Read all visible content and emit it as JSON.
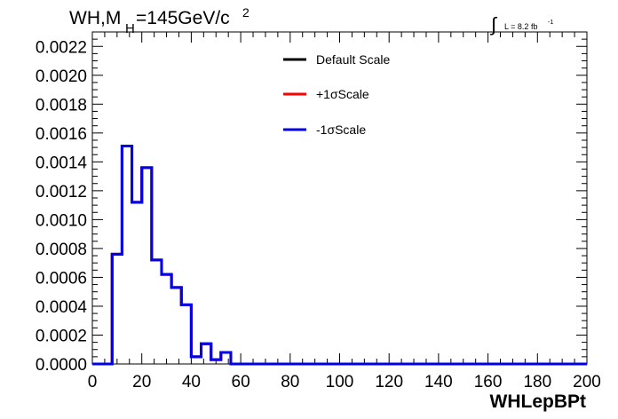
{
  "chart_data": {
    "type": "line",
    "title": "WH,M",
    "title_sub": "H",
    "title_rest": "=145GeV/c",
    "title_sup": "2",
    "lumi_integral": "∫",
    "lumi_text": "L = 8.2 fb",
    "lumi_sup": "-1",
    "xlabel": "WHLepBPt",
    "ylabel": "",
    "xlim": [
      0,
      200
    ],
    "ylim": [
      0,
      0.0023
    ],
    "x_ticks": [
      "0",
      "20",
      "40",
      "60",
      "80",
      "100",
      "120",
      "140",
      "160",
      "180",
      "200"
    ],
    "y_ticks": [
      "0.0000",
      "0.0002",
      "0.0004",
      "0.0006",
      "0.0008",
      "0.0010",
      "0.0012",
      "0.0014",
      "0.0016",
      "0.0018",
      "0.0020",
      "0.0022"
    ],
    "bin_width": 4,
    "legend_position": "top-center",
    "series": [
      {
        "name": "Default Scale",
        "color": "#000000",
        "values": [
          0,
          0,
          0.00076,
          0.00151,
          0.00112,
          0.00136,
          0.00072,
          0.00062,
          0.00053,
          0.00041,
          5e-05,
          0.00014,
          3e-05,
          8e-05,
          0,
          0,
          0,
          0,
          0,
          0,
          0,
          0,
          0,
          0,
          0,
          0,
          0,
          0,
          0,
          0,
          0,
          0,
          0,
          0,
          0,
          0,
          0,
          0,
          0,
          0,
          0,
          0,
          0,
          0,
          0,
          0,
          0,
          0,
          0,
          0
        ]
      },
      {
        "name": "+1σScale",
        "color": "#ff0000",
        "values": [
          0,
          0,
          0.00076,
          0.00151,
          0.00112,
          0.00136,
          0.00072,
          0.00062,
          0.00053,
          0.00041,
          5e-05,
          0.00014,
          3e-05,
          8e-05,
          0,
          0,
          0,
          0,
          0,
          0,
          0,
          0,
          0,
          0,
          0,
          0,
          0,
          0,
          0,
          0,
          0,
          0,
          0,
          0,
          0,
          0,
          0,
          0,
          0,
          0,
          0,
          0,
          0,
          0,
          0,
          0,
          0,
          0,
          0,
          0
        ]
      },
      {
        "name": "-1σScale",
        "color": "#0000ee",
        "values": [
          0,
          0,
          0.00076,
          0.00151,
          0.00112,
          0.00136,
          0.00072,
          0.00062,
          0.00053,
          0.00041,
          5e-05,
          0.00014,
          3e-05,
          8e-05,
          0,
          0,
          0,
          0,
          0,
          0,
          0,
          0,
          0,
          0,
          0,
          0,
          0,
          0,
          0,
          0,
          0,
          0,
          0,
          0,
          0,
          0,
          0,
          0,
          0,
          0,
          0,
          0,
          0,
          0,
          0,
          0,
          0,
          0,
          0,
          0
        ]
      }
    ]
  }
}
